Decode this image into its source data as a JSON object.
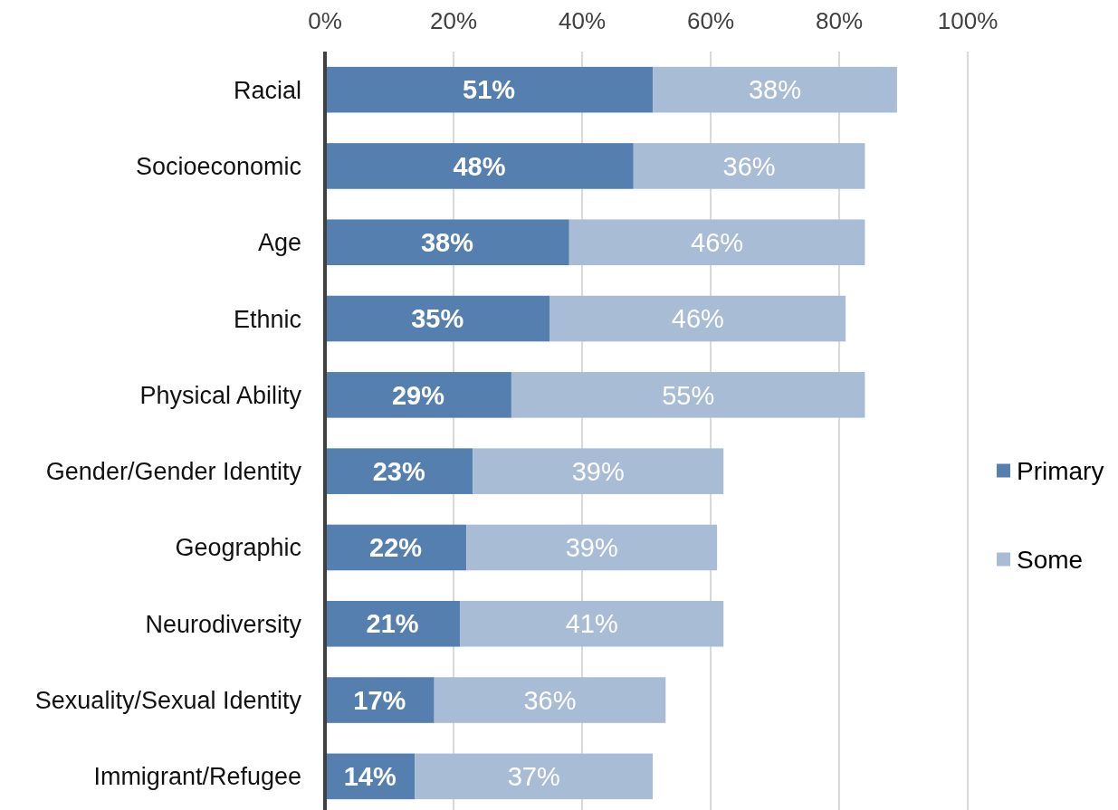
{
  "chart_data": {
    "type": "bar",
    "orientation": "horizontal",
    "stacked": true,
    "categories": [
      "Racial",
      "Socioeconomic",
      "Age",
      "Ethnic",
      "Physical Ability",
      "Gender/Gender Identity",
      "Geographic",
      "Neurodiversity",
      "Sexuality/Sexual Identity",
      "Immigrant/Refugee"
    ],
    "series": [
      {
        "name": "Primary",
        "color": "#557fae",
        "values": [
          51,
          48,
          38,
          35,
          29,
          23,
          22,
          21,
          17,
          14
        ],
        "value_labels": [
          "51%",
          "48%",
          "38%",
          "35%",
          "29%",
          "23%",
          "22%",
          "21%",
          "17%",
          "14%"
        ]
      },
      {
        "name": "Some",
        "color": "#a8bcd5",
        "values": [
          38,
          36,
          46,
          46,
          55,
          39,
          39,
          41,
          36,
          37
        ],
        "value_labels": [
          "38%",
          "36%",
          "46%",
          "46%",
          "55%",
          "39%",
          "39%",
          "41%",
          "36%",
          "37%"
        ]
      }
    ],
    "xlim": [
      0,
      100
    ],
    "xticks": [
      {
        "value": 0,
        "label": "0%"
      },
      {
        "value": 20,
        "label": "20%"
      },
      {
        "value": 40,
        "label": "40%"
      },
      {
        "value": 60,
        "label": "60%"
      },
      {
        "value": 80,
        "label": "80%"
      },
      {
        "value": 100,
        "label": "100%"
      }
    ],
    "grid": "x",
    "legend": "right"
  }
}
